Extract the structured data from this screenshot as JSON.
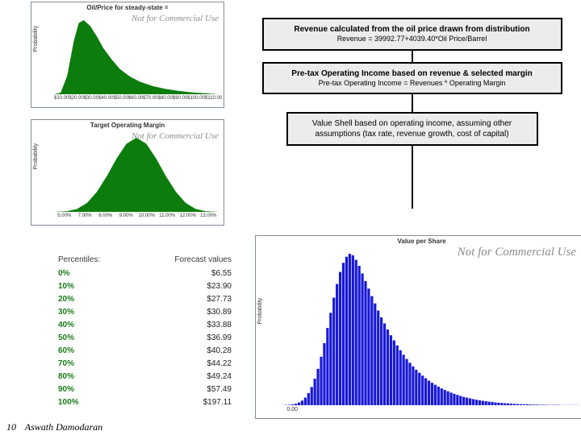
{
  "oil_chart": {
    "type": "area",
    "title": "Oil/Price for steady-state =",
    "watermark": "Not for Commercial Use",
    "ylabel": "Probability",
    "fill_color": "#0c7c0c",
    "border_color": "#7f8d99",
    "background_color": "#ffffff",
    "xticks": [
      "$10.00",
      "$20.00",
      "$30.00",
      "$40.00",
      "$50.00",
      "$60.00",
      "$70.00",
      "$80.00",
      "$90.00",
      "$100.00",
      "$110.00"
    ],
    "points": [
      [
        0.0,
        0.0
      ],
      [
        0.04,
        0.02
      ],
      [
        0.08,
        0.25
      ],
      [
        0.12,
        0.72
      ],
      [
        0.15,
        0.96
      ],
      [
        0.18,
        1.0
      ],
      [
        0.22,
        0.92
      ],
      [
        0.26,
        0.78
      ],
      [
        0.3,
        0.62
      ],
      [
        0.35,
        0.47
      ],
      [
        0.4,
        0.34
      ],
      [
        0.46,
        0.24
      ],
      [
        0.52,
        0.17
      ],
      [
        0.6,
        0.11
      ],
      [
        0.68,
        0.07
      ],
      [
        0.76,
        0.045
      ],
      [
        0.84,
        0.025
      ],
      [
        0.92,
        0.012
      ],
      [
        1.0,
        0.0
      ]
    ]
  },
  "margin_chart": {
    "type": "area",
    "title": "Target Operating Margin",
    "watermark": "Not for Commercial Use",
    "ylabel": "Probability",
    "fill_color": "#0c7c0c",
    "border_color": "#7f8d99",
    "background_color": "#ffffff",
    "xticks": [
      "5.00%",
      "7.00%",
      "8.00%",
      "9.00%",
      "10.00%",
      "11.00%",
      "12.00%",
      "13.00%"
    ],
    "points": [
      [
        0.0,
        0.0
      ],
      [
        0.08,
        0.01
      ],
      [
        0.14,
        0.04
      ],
      [
        0.2,
        0.12
      ],
      [
        0.26,
        0.27
      ],
      [
        0.32,
        0.48
      ],
      [
        0.38,
        0.72
      ],
      [
        0.44,
        0.92
      ],
      [
        0.5,
        1.0
      ],
      [
        0.56,
        0.92
      ],
      [
        0.62,
        0.72
      ],
      [
        0.68,
        0.48
      ],
      [
        0.74,
        0.27
      ],
      [
        0.8,
        0.12
      ],
      [
        0.86,
        0.04
      ],
      [
        0.92,
        0.01
      ],
      [
        1.0,
        0.0
      ]
    ]
  },
  "flow": {
    "box1_title": "Revenue calculated from the oil price drawn from distribution",
    "box1_formula": "Revenue = 39992.77+4039.40*Oil Price/Barrel",
    "box2_title": "Pre-tax Operating Income based on revenue & selected margin",
    "box2_formula": "Pre-tax Operating Income = Revenues * Operating Margin",
    "box3_text": "Value Shell based on operating income, assuming other assumptions (tax rate, revenue growth, cost of capital)"
  },
  "percentiles": {
    "header_left": "Percentiles:",
    "header_right": "Forecast values",
    "rows": [
      {
        "p": "0%",
        "v": "$6.55"
      },
      {
        "p": "10%",
        "v": "$23.90"
      },
      {
        "p": "20%",
        "v": "$27.73"
      },
      {
        "p": "30%",
        "v": "$30.89"
      },
      {
        "p": "40%",
        "v": "$33.88"
      },
      {
        "p": "50%",
        "v": "$36.99"
      },
      {
        "p": "60%",
        "v": "$40.28"
      },
      {
        "p": "70%",
        "v": "$44.22"
      },
      {
        "p": "80%",
        "v": "$49.24"
      },
      {
        "p": "90%",
        "v": "$57.49"
      },
      {
        "p": "100%",
        "v": "$197.11"
      }
    ]
  },
  "value_chart": {
    "type": "histogram",
    "title": "Value per Share",
    "watermark": "Not for Commercial Use",
    "ylabel": "Probability",
    "fill_color": "#1818d8",
    "border_color": "#7f8d99",
    "background_color": "#ffffff",
    "bar_gap": 0.18,
    "xticks": [
      "0.00",
      "",
      "",
      "",
      "",
      "",
      "",
      "",
      "",
      "",
      ""
    ],
    "bins": [
      0.0,
      0.001,
      0.002,
      0.003,
      0.006,
      0.01,
      0.018,
      0.03,
      0.05,
      0.08,
      0.12,
      0.175,
      0.24,
      0.32,
      0.41,
      0.51,
      0.61,
      0.71,
      0.8,
      0.88,
      0.94,
      0.98,
      1.0,
      0.99,
      0.96,
      0.92,
      0.87,
      0.82,
      0.77,
      0.72,
      0.672,
      0.625,
      0.58,
      0.54,
      0.5,
      0.462,
      0.428,
      0.395,
      0.363,
      0.333,
      0.305,
      0.28,
      0.256,
      0.234,
      0.214,
      0.195,
      0.178,
      0.162,
      0.148,
      0.135,
      0.123,
      0.111,
      0.101,
      0.092,
      0.083,
      0.075,
      0.068,
      0.061,
      0.055,
      0.05,
      0.045,
      0.04,
      0.036,
      0.032,
      0.029,
      0.026,
      0.023,
      0.021,
      0.018,
      0.016,
      0.015,
      0.013,
      0.012,
      0.01,
      0.009,
      0.008,
      0.007,
      0.006,
      0.006,
      0.005,
      0.004,
      0.004,
      0.003,
      0.003,
      0.003,
      0.002,
      0.002,
      0.002,
      0.002,
      0.001,
      0.001,
      0.001,
      0.001,
      0.001,
      0.001,
      0.0
    ]
  },
  "footer": {
    "page": "10",
    "author": "Aswath Damodaran"
  }
}
